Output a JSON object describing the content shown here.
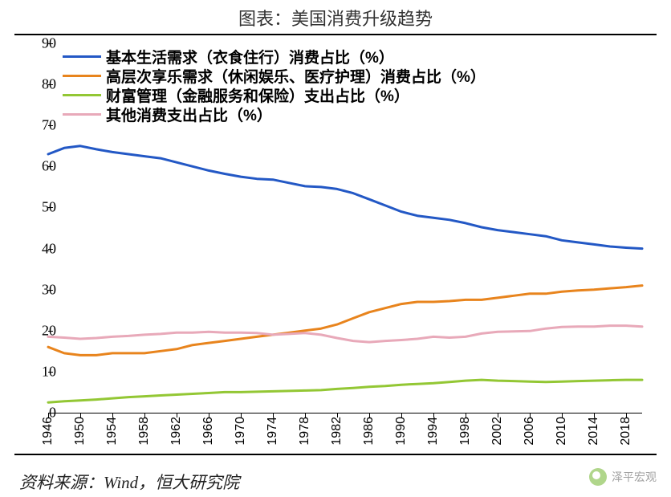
{
  "title": "图表：美国消费升级趋势",
  "source": "资料来源：Wind，恒大研究院",
  "watermark": "泽平宏观",
  "chart": {
    "type": "line",
    "background_color": "#ffffff",
    "border_color": "#000000",
    "ylim": [
      0,
      90
    ],
    "ytick_step": 10,
    "yticks": [
      0,
      10,
      20,
      30,
      40,
      50,
      60,
      70,
      80,
      90
    ],
    "xlim": [
      1946,
      2020
    ],
    "xticks": [
      1946,
      1950,
      1954,
      1958,
      1962,
      1966,
      1970,
      1974,
      1978,
      1982,
      1986,
      1990,
      1994,
      1998,
      2002,
      2006,
      2010,
      2014,
      2018
    ],
    "line_width": 3,
    "axis_fontsize": 18,
    "tick_fontsize": 16,
    "legend_fontsize": 19,
    "legend_position": "top-left-inside",
    "series": [
      {
        "name": "basic",
        "label": "基本生活需求（衣食住行）消费占比（%）",
        "color": "#2358c5",
        "years": [
          1946,
          1948,
          1950,
          1952,
          1954,
          1956,
          1958,
          1960,
          1962,
          1964,
          1966,
          1968,
          1970,
          1972,
          1974,
          1976,
          1978,
          1980,
          1982,
          1984,
          1986,
          1988,
          1990,
          1992,
          1994,
          1996,
          1998,
          2000,
          2002,
          2004,
          2006,
          2008,
          2010,
          2012,
          2014,
          2016,
          2018,
          2020
        ],
        "values": [
          63,
          64.5,
          65,
          64.2,
          63.5,
          63,
          62.5,
          62,
          61,
          60,
          59,
          58.2,
          57.5,
          57,
          56.8,
          56,
          55.2,
          55,
          54.5,
          53.5,
          52,
          50.5,
          49,
          48,
          47.5,
          47,
          46.2,
          45.2,
          44.5,
          44,
          43.5,
          43,
          42,
          41.5,
          41,
          40.5,
          40.2,
          40
        ]
      },
      {
        "name": "leisure",
        "label": "高层次享乐需求（休闲娱乐、医疗护理）消费占比（%）",
        "color": "#e8841d",
        "years": [
          1946,
          1948,
          1950,
          1952,
          1954,
          1956,
          1958,
          1960,
          1962,
          1964,
          1966,
          1968,
          1970,
          1972,
          1974,
          1976,
          1978,
          1980,
          1982,
          1984,
          1986,
          1988,
          1990,
          1992,
          1994,
          1996,
          1998,
          2000,
          2002,
          2004,
          2006,
          2008,
          2010,
          2012,
          2014,
          2016,
          2018,
          2020
        ],
        "values": [
          16,
          14.5,
          14,
          14,
          14.5,
          14.5,
          14.5,
          15,
          15.5,
          16.5,
          17,
          17.5,
          18,
          18.5,
          19,
          19.5,
          20,
          20.5,
          21.5,
          23,
          24.5,
          25.5,
          26.5,
          27,
          27,
          27.2,
          27.5,
          27.5,
          28,
          28.5,
          29,
          29,
          29.5,
          29.8,
          30,
          30.3,
          30.6,
          31
        ]
      },
      {
        "name": "wealth",
        "label": "财富管理（金融服务和保险）支出占比（%）",
        "color": "#93c734",
        "years": [
          1946,
          1948,
          1950,
          1952,
          1954,
          1956,
          1958,
          1960,
          1962,
          1964,
          1966,
          1968,
          1970,
          1972,
          1974,
          1976,
          1978,
          1980,
          1982,
          1984,
          1986,
          1988,
          1990,
          1992,
          1994,
          1996,
          1998,
          2000,
          2002,
          2004,
          2006,
          2008,
          2010,
          2012,
          2014,
          2016,
          2018,
          2020
        ],
        "values": [
          2.5,
          2.8,
          3,
          3.2,
          3.5,
          3.8,
          4,
          4.2,
          4.4,
          4.6,
          4.8,
          5,
          5,
          5.1,
          5.2,
          5.3,
          5.4,
          5.5,
          5.8,
          6,
          6.3,
          6.5,
          6.8,
          7,
          7.2,
          7.5,
          7.8,
          8,
          7.8,
          7.7,
          7.6,
          7.5,
          7.6,
          7.7,
          7.8,
          7.9,
          8,
          8
        ]
      },
      {
        "name": "other",
        "label": "其他消费支出占比（%）",
        "color": "#e8a9b9",
        "years": [
          1946,
          1948,
          1950,
          1952,
          1954,
          1956,
          1958,
          1960,
          1962,
          1964,
          1966,
          1968,
          1970,
          1972,
          1974,
          1976,
          1978,
          1980,
          1982,
          1984,
          1986,
          1988,
          1990,
          1992,
          1994,
          1996,
          1998,
          2000,
          2002,
          2004,
          2006,
          2008,
          2010,
          2012,
          2014,
          2016,
          2018,
          2020
        ],
        "values": [
          18.5,
          18.3,
          18,
          18.2,
          18.5,
          18.7,
          19,
          19.2,
          19.5,
          19.5,
          19.7,
          19.5,
          19.5,
          19.4,
          19,
          19.2,
          19.4,
          19,
          18.2,
          17.5,
          17.2,
          17.5,
          17.7,
          18,
          18.5,
          18.3,
          18.5,
          19.3,
          19.7,
          19.8,
          19.9,
          20.5,
          20.9,
          21,
          21,
          21.2,
          21.2,
          21
        ]
      }
    ]
  }
}
